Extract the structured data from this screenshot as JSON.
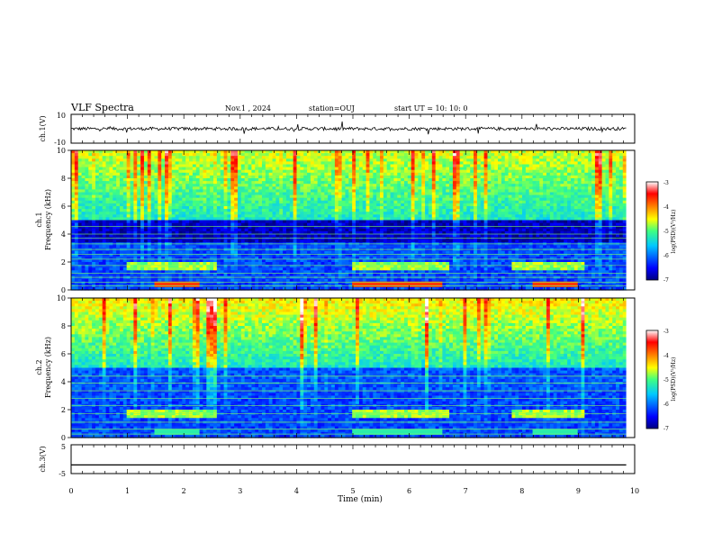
{
  "header": {
    "title": "VLF Spectra",
    "date": "Nov.1 , 2024",
    "station": "station=OUJ",
    "start": "start UT = 10: 10: 0"
  },
  "chart_data": [
    {
      "type": "line",
      "name": "ch1-waveform",
      "ylabel": "ch.1(V)",
      "ylim": [
        -10,
        10
      ],
      "y_ticks": [
        "10",
        "-10"
      ],
      "xlim": [
        0,
        10
      ],
      "approx_level": 0
    },
    {
      "type": "heatmap",
      "name": "ch1-spectrogram",
      "ylabel": "ch.1 Frequency (kHz)",
      "ylim": [
        0,
        10
      ],
      "y_ticks": [
        "0",
        "2",
        "4",
        "6",
        "8",
        "10"
      ],
      "xlim": [
        0,
        10
      ],
      "colorbar": {
        "label": "log(PSD)(V²/Hz)",
        "range": [
          -7,
          -3
        ],
        "ticks": [
          "-3",
          "-4",
          "-5",
          "-6",
          "-7"
        ]
      }
    },
    {
      "type": "heatmap",
      "name": "ch2-spectrogram",
      "ylabel": "ch.2 Frequency (kHz)",
      "ylim": [
        0,
        10
      ],
      "y_ticks": [
        "0",
        "2",
        "4",
        "6",
        "8",
        "10"
      ],
      "xlim": [
        0,
        10
      ],
      "colorbar": {
        "label": "log(PSD)(V²/Hz)",
        "range": [
          -7,
          -3
        ],
        "ticks": [
          "-3",
          "-4",
          "-5",
          "-6",
          "-7"
        ]
      }
    },
    {
      "type": "line",
      "name": "ch3-trace",
      "ylabel": "ch.3(V)",
      "ylim": [
        -5,
        5
      ],
      "y_ticks": [
        "5",
        "-5"
      ],
      "xlim": [
        0,
        10
      ],
      "approx_level": -2
    }
  ],
  "x_axis": {
    "label": "Time (min)",
    "ticks": [
      "0",
      "1",
      "2",
      "3",
      "4",
      "5",
      "6",
      "7",
      "8",
      "9",
      "10"
    ]
  },
  "ch1_label": {
    "line1": "ch.1",
    "line2": "Frequency (kHz)"
  },
  "ch2_label": {
    "line1": "ch.2",
    "line2": "Frequency (kHz)"
  },
  "colorbar_label": "log(PSD)(V²/Hz)",
  "colors": {
    "scale": [
      "#000080",
      "#0000ff",
      "#00c8ff",
      "#40ff80",
      "#ffff00",
      "#ff8000",
      "#ff0000",
      "#ffffff"
    ]
  }
}
